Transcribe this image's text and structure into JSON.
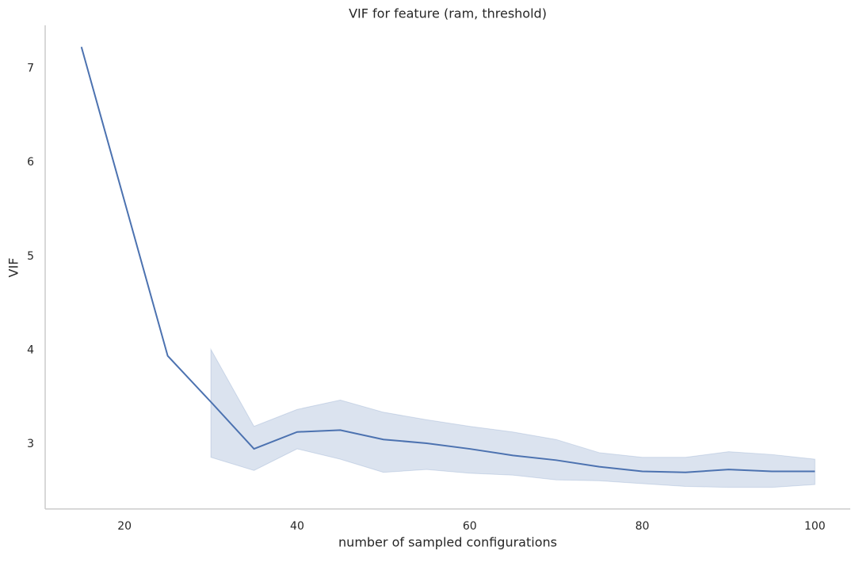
{
  "chart_data": {
    "type": "line",
    "title": "VIF for feature (ram, threshold)",
    "xlabel": "number of sampled configurations",
    "ylabel": "VIF",
    "x": [
      15,
      25,
      30,
      35,
      40,
      45,
      50,
      55,
      60,
      65,
      70,
      75,
      80,
      85,
      90,
      95,
      100
    ],
    "series": [
      {
        "color": "#4c72b0",
        "values": [
          7.23,
          3.94,
          3.45,
          2.95,
          3.13,
          3.15,
          3.05,
          3.01,
          2.95,
          2.88,
          2.83,
          2.76,
          2.71,
          2.7,
          2.73,
          2.71,
          2.71
        ],
        "upper": [
          null,
          null,
          4.01,
          3.19,
          3.37,
          3.47,
          3.34,
          3.26,
          3.19,
          3.13,
          3.05,
          2.91,
          2.86,
          2.86,
          2.92,
          2.89,
          2.84
        ],
        "lower": [
          null,
          null,
          2.86,
          2.72,
          2.95,
          2.84,
          2.7,
          2.73,
          2.69,
          2.67,
          2.62,
          2.61,
          2.58,
          2.55,
          2.54,
          2.54,
          2.57
        ]
      }
    ],
    "xlim": [
      10.8,
      104.1
    ],
    "ylim": [
      2.31,
      7.46
    ],
    "xticks": [
      20,
      40,
      60,
      80,
      100
    ],
    "yticks": [
      3,
      4,
      5,
      6,
      7
    ],
    "grid": false
  }
}
